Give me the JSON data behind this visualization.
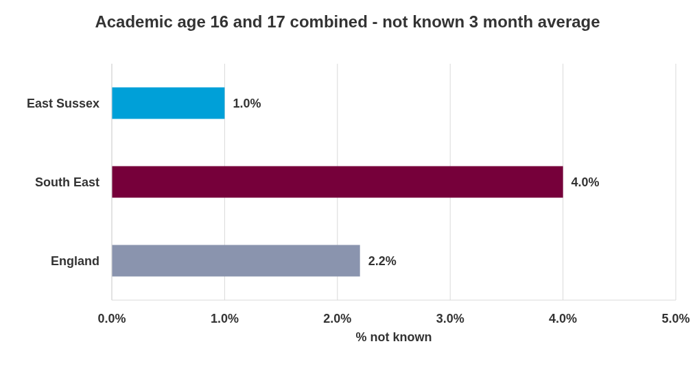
{
  "chart_data": {
    "type": "bar",
    "orientation": "horizontal",
    "title": "Academic age 16 and 17 combined  - not known 3 month average",
    "xlabel": "% not known",
    "categories": [
      "East Sussex",
      "South East",
      "England"
    ],
    "values": [
      1.0,
      4.0,
      2.2
    ],
    "colors": [
      "#00a0d8",
      "#76003a",
      "#8a94ae"
    ],
    "value_labels": [
      "1.0%",
      "4.0%",
      "2.2%"
    ],
    "xlim": [
      0,
      5
    ],
    "xticks": [
      {
        "value": 0,
        "label": "0.0%"
      },
      {
        "value": 1,
        "label": "1.0%"
      },
      {
        "value": 2,
        "label": "2.0%"
      },
      {
        "value": 3,
        "label": "3.0%"
      },
      {
        "value": 4,
        "label": "4.0%"
      },
      {
        "value": 5,
        "label": "5.0%"
      }
    ],
    "grid": "x",
    "legend": false
  }
}
